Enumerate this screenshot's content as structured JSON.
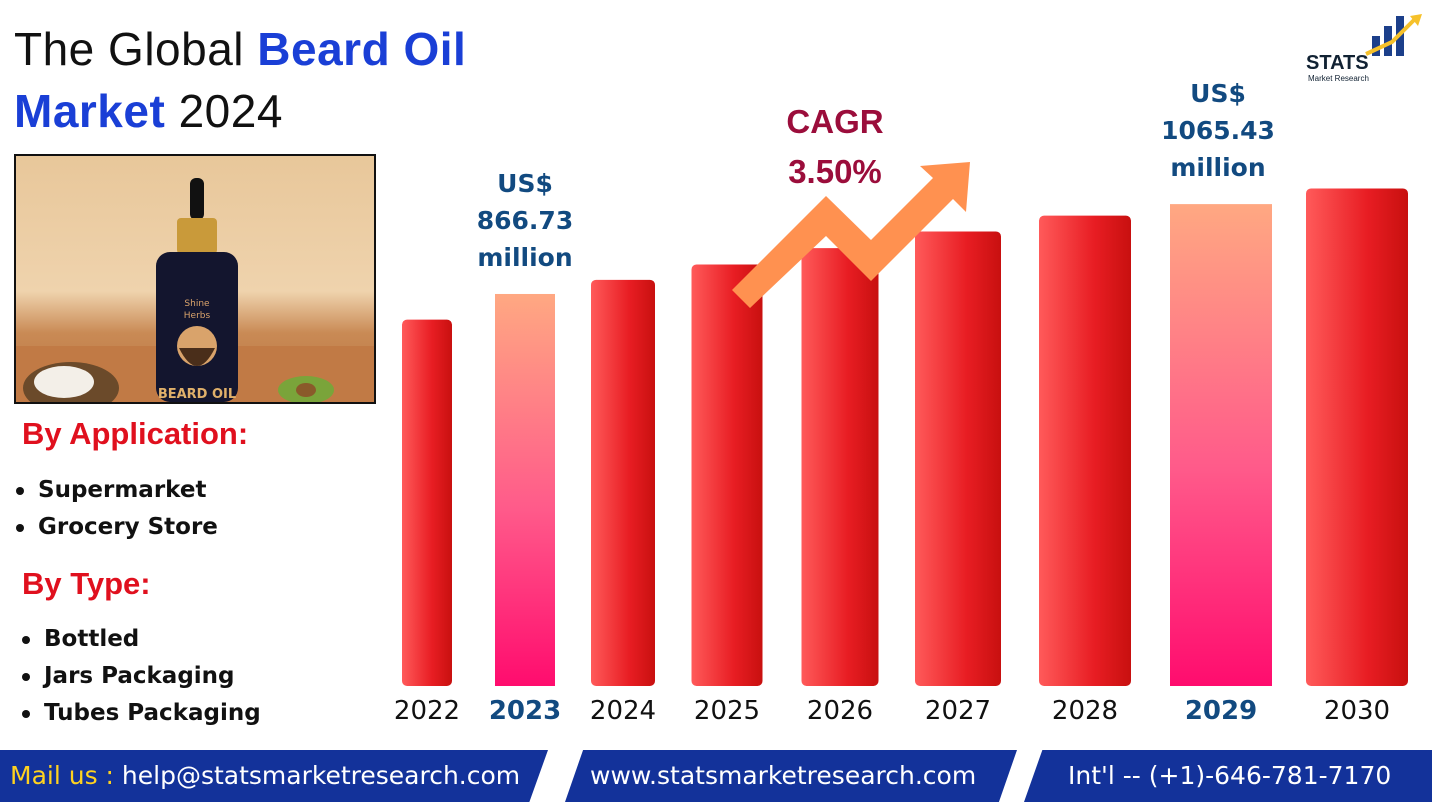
{
  "title": {
    "prefix": "The Global ",
    "highlight1": "Beard Oil",
    "highlight2": "Market",
    "suffix": " 2024"
  },
  "product_image": {
    "icon": "beard-oil-bottle",
    "label": "BEARD OIL"
  },
  "logo": {
    "name": "STATS",
    "sub": "Market Research"
  },
  "by_application": {
    "heading": "By Application:",
    "items": [
      "Supermarket",
      "Grocery Store"
    ]
  },
  "by_type": {
    "heading": "By Type:",
    "items": [
      "Bottled",
      "Jars Packaging",
      "Tubes Packaging"
    ]
  },
  "cagr": {
    "label": "CAGR",
    "value": "3.50%"
  },
  "callouts": [
    {
      "year": "2023",
      "line1": "US$",
      "line2": "866.73",
      "line3": "million"
    },
    {
      "year": "2029",
      "line1": "US$",
      "line2": "1065.43",
      "line3": "million"
    }
  ],
  "footer": {
    "mail_label": "Mail us : ",
    "email": "help@statsmarketresearch.com",
    "website": "www.statsmarketresearch.com",
    "phone": "Int'l -- (+1)-646-781-7170"
  },
  "colors": {
    "bar": "#e81d23",
    "highlight_bar_top": "#ffa882",
    "highlight_bar_bottom": "#ff0c6e",
    "title_blue": "#1a3fd6",
    "callout_blue": "#124a80",
    "cagr": "#9b0d3b",
    "arrow": "#ff9150",
    "footer": "#13329a"
  },
  "chart_data": {
    "type": "bar",
    "categories": [
      "2022",
      "2023",
      "2024",
      "2025",
      "2026",
      "2027",
      "2028",
      "2029",
      "2030"
    ],
    "values": [
      810,
      866.73,
      898,
      932,
      968,
      1005,
      1040,
      1065.43,
      1100
    ],
    "highlighted": [
      "2023",
      "2029"
    ],
    "ylim": [
      0,
      1130
    ],
    "xlabel": "",
    "ylabel": "",
    "grid": false
  }
}
